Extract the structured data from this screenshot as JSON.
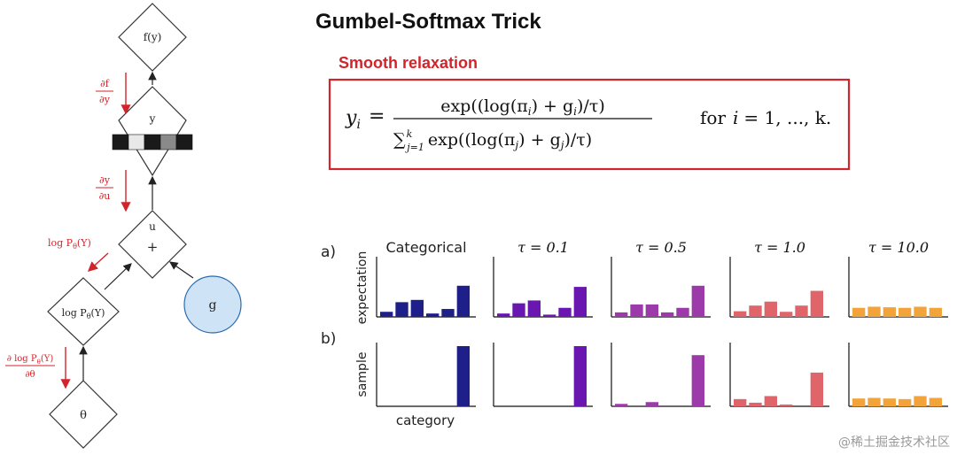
{
  "graph": {
    "nodes": {
      "fy": "f(y)",
      "y": "y",
      "u": "u",
      "plus": "+",
      "logp": "log P",
      "logp_sub": "θ",
      "logp_tail": "(Y)",
      "g": "g",
      "theta": "θ"
    },
    "onehot_colors": [
      "#1a1a1a",
      "#e8e8e8",
      "#1a1a1a",
      "#8a8a8a",
      "#1a1a1a"
    ],
    "gradients": {
      "df_dy_num": "∂f",
      "df_dy_den": "∂y",
      "dy_du_num": "∂y",
      "dy_du_den": "∂u",
      "logp_side": "log P",
      "logp_side_sub": "θ",
      "logp_side_tail": "(Y)",
      "dlogp_num": "∂ log P",
      "dlogp_num_sub": "θ",
      "dlogp_num_tail": "(Y)",
      "dlogp_den": "∂θ"
    },
    "colors": {
      "gradient": "#d1242b",
      "g_fill": "#cfe3f7",
      "g_stroke": "#2b6cb0"
    }
  },
  "header": {
    "title": "Gumbel-Softmax Trick",
    "subtitle": "Smooth relaxation"
  },
  "formula": {
    "lhs": "y",
    "lhs_sub": "i",
    "eq": "=",
    "numerator": "exp((log(π",
    "numerator_sub": "i",
    "numerator_mid": ") + g",
    "numerator_sub2": "i",
    "numerator_tail": ")/τ)",
    "sum": "∑",
    "sum_sup": "k",
    "sum_sub": "j=1",
    "denominator": "exp((log(π",
    "denominator_sub": "j",
    "denominator_mid": ") + g",
    "denominator_sub2": "j",
    "denominator_tail": ")/τ)",
    "condition_for": "for",
    "condition_i": "i",
    "condition_rest": "= 1, ..., k.",
    "box_color": "#d1242b"
  },
  "figure": {
    "row_labels": [
      "a)",
      "b)"
    ],
    "ylabels": [
      "expectation",
      "sample"
    ],
    "xlabel": "category",
    "columns": [
      {
        "title": "Categorical",
        "color": "#1f1f8a",
        "expectation": [
          0.09,
          0.26,
          0.3,
          0.06,
          0.14,
          0.55
        ],
        "sample": [
          0,
          0,
          0,
          0,
          0,
          1.0
        ]
      },
      {
        "title": "τ = 0.1",
        "color": "#6a16b0",
        "expectation": [
          0.06,
          0.24,
          0.29,
          0.04,
          0.16,
          0.53
        ],
        "sample": [
          0,
          0,
          0,
          0,
          0,
          1.0
        ]
      },
      {
        "title": "τ = 0.5",
        "color": "#9b3aa8",
        "expectation": [
          0.08,
          0.22,
          0.22,
          0.08,
          0.16,
          0.55
        ],
        "sample": [
          0.04,
          0,
          0.07,
          0,
          0,
          0.85
        ]
      },
      {
        "title": "τ = 1.0",
        "color": "#e0656a",
        "expectation": [
          0.1,
          0.2,
          0.27,
          0.09,
          0.2,
          0.46
        ],
        "sample": [
          0.12,
          0.06,
          0.17,
          0.03,
          0,
          0.56
        ]
      },
      {
        "title": "τ = 10.0",
        "color": "#f2a33a",
        "expectation": [
          0.16,
          0.18,
          0.17,
          0.16,
          0.18,
          0.16
        ],
        "sample": [
          0.13,
          0.14,
          0.13,
          0.12,
          0.17,
          0.14
        ]
      }
    ]
  },
  "watermark": "@稀土掘金技术社区"
}
